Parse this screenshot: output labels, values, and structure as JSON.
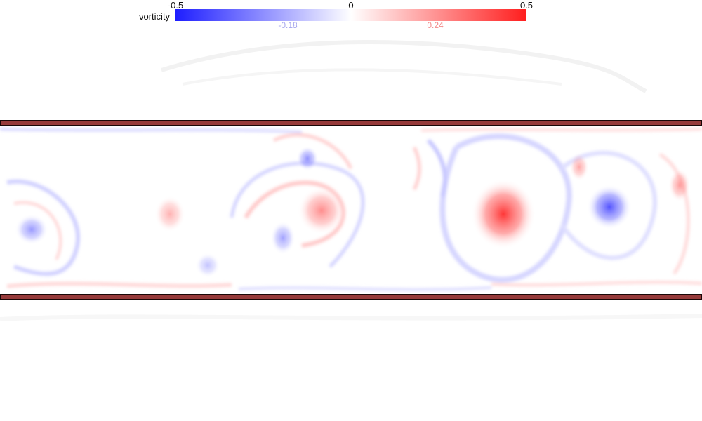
{
  "colorbar": {
    "label": "vorticity",
    "min_label": "-0.5",
    "mid_label": "0",
    "max_label": "0.5",
    "min": -0.5,
    "max": 0.5,
    "colors": {
      "negative": "#1e1eff",
      "zero": "#ffffff",
      "positive": "#ff1e1e"
    },
    "markers": [
      {
        "label": "-0.18",
        "value": -0.18,
        "color": "#a5a5ee"
      },
      {
        "label": "0.24",
        "value": 0.24,
        "color": "#f28a8a"
      }
    ]
  },
  "walls": {
    "color": "#963a3a",
    "outline": "#1a0707"
  },
  "vortices": [
    {
      "name": "vortex-positive-large",
      "sign": "positive",
      "strength": 0.42
    },
    {
      "name": "vortex-negative-right",
      "sign": "negative",
      "strength": 0.38
    },
    {
      "name": "vortex-negative-left",
      "sign": "negative",
      "strength": 0.22
    },
    {
      "name": "vortex-positive-mid",
      "sign": "positive",
      "strength": 0.24
    },
    {
      "name": "vortex-negative-mid",
      "sign": "negative",
      "strength": 0.2
    },
    {
      "name": "vortex-negative-upper",
      "sign": "negative",
      "strength": 0.24
    },
    {
      "name": "vortex-positive-left",
      "sign": "positive",
      "strength": 0.16
    },
    {
      "name": "vortex-negative-low",
      "sign": "negative",
      "strength": 0.13
    },
    {
      "name": "vortex-positive-upper-right",
      "sign": "positive",
      "strength": 0.18
    },
    {
      "name": "vortex-positive-far-right",
      "sign": "positive",
      "strength": 0.2
    }
  ]
}
